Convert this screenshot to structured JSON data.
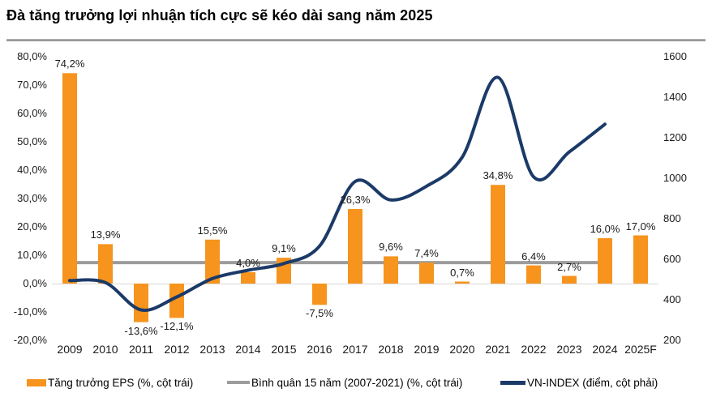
{
  "title": "Đà tăng trưởng lợi nhuận tích cực sẽ kéo dài sang năm 2025",
  "chart_data": {
    "type": "combo_bar_line",
    "categories": [
      "2009",
      "2010",
      "2011",
      "2012",
      "2013",
      "2014",
      "2015",
      "2016",
      "2017",
      "2018",
      "2019",
      "2020",
      "2021",
      "2022",
      "2023",
      "2024",
      "2025F"
    ],
    "series": [
      {
        "name": "Tăng trưởng EPS (%, cột trái)",
        "type": "bar",
        "axis": "left",
        "unit": "%",
        "values": [
          74.2,
          13.9,
          -13.6,
          -12.1,
          15.5,
          4.0,
          9.1,
          -7.5,
          26.3,
          9.6,
          7.4,
          0.7,
          34.8,
          6.4,
          2.7,
          16.0,
          17.0
        ],
        "labels": [
          "74,2%",
          "13,9%",
          "-13,6%",
          "-12,1%",
          "15,5%",
          "4,0%",
          "9,1%",
          "-7,5%",
          "26,3%",
          "9,6%",
          "7,4%",
          "0,7%",
          "34,8%",
          "6,4%",
          "2,7%",
          "16,0%",
          "17,0%"
        ],
        "color": "#F6941D"
      },
      {
        "name": "Bình quân 15 năm (2007-2021) (%, cột trái)",
        "type": "flat_line",
        "axis": "left",
        "unit": "%",
        "value": 7.4,
        "from_category": "2009",
        "to_category": "2024",
        "color": "#9C9C9C"
      },
      {
        "name": "VN-INDEX (điểm, cột phải)",
        "type": "smooth_line",
        "axis": "right",
        "unit": "điểm",
        "values": [
          495,
          485,
          350,
          414,
          505,
          546,
          579,
          665,
          984,
          893,
          961,
          1104,
          1498,
          1007,
          1130,
          1267,
          null
        ],
        "color": "#1B3A68"
      }
    ],
    "left_axis": {
      "min": -20,
      "max": 80,
      "tick_step": 10,
      "tick_values": [
        80,
        70,
        60,
        50,
        40,
        30,
        20,
        10,
        0,
        -10,
        -20
      ],
      "tick_labels": [
        "80,0%",
        "70,0%",
        "60,0%",
        "50,0%",
        "40,0%",
        "30,0%",
        "20,0%",
        "10,0%",
        "0,0%",
        "-10,0%",
        "-20,0%"
      ]
    },
    "right_axis": {
      "min": 200,
      "max": 1600,
      "tick_step": 200,
      "tick_values": [
        1600,
        1400,
        1200,
        1000,
        800,
        600,
        400,
        200
      ],
      "tick_labels": [
        "1600",
        "1400",
        "1200",
        "1000",
        "800",
        "600",
        "400",
        "200"
      ]
    },
    "gridlines": "zero-only",
    "legend_position": "bottom"
  },
  "legend": {
    "items": [
      {
        "label": "Tăng trưởng EPS (%, cột trái)",
        "swatch": "bar",
        "color": "#F6941D"
      },
      {
        "label": "Bình quân 15 năm (2007-2021) (%, cột trái)",
        "swatch": "line",
        "color": "#9C9C9C"
      },
      {
        "label": "VN-INDEX (điểm, cột phải)",
        "swatch": "line-thick",
        "color": "#1B3A68"
      }
    ]
  },
  "colors": {
    "bar": "#F6941D",
    "average_line": "#9C9C9C",
    "index_line": "#1B3A68",
    "zero_gridline": "#D9D9D9",
    "title_divider": "#8C8C8C",
    "text": "#1A1A1A"
  }
}
